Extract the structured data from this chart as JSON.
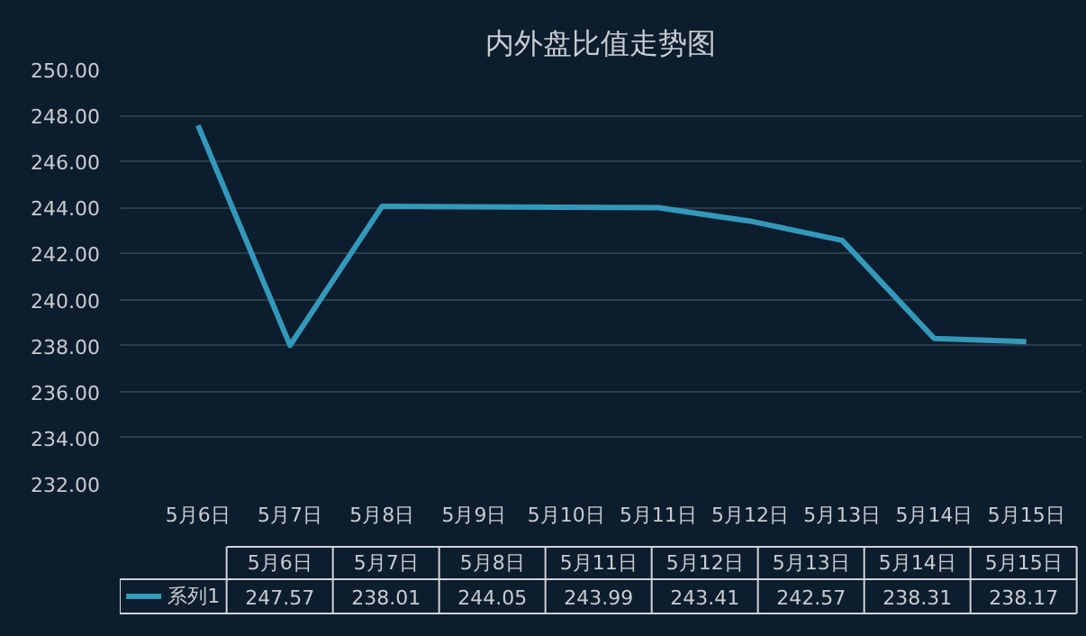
{
  "chart_data": [
    {
      "type": "line",
      "title": "内外盘比值走势图",
      "categories": [
        "5月6日",
        "5月7日",
        "5月8日",
        "5月9日",
        "5月10日",
        "5月11日",
        "5月12日",
        "5月13日",
        "5月14日",
        "5月15日"
      ],
      "series": [
        {
          "color": "#3399bb",
          "values": [
            247.57,
            238.01,
            244.05,
            null,
            null,
            243.99,
            243.41,
            242.57,
            238.31,
            238.17
          ]
        }
      ],
      "ylim": [
        232,
        250
      ],
      "yticks": [
        {
          "value": 232,
          "label": "232.00"
        },
        {
          "value": 234,
          "label": "234.00"
        },
        {
          "value": 236,
          "label": "236.00"
        },
        {
          "value": 238,
          "label": "238.00"
        },
        {
          "value": 240,
          "label": "240.00"
        },
        {
          "value": 242,
          "label": "242.00"
        },
        {
          "value": 244,
          "label": "244.00"
        },
        {
          "value": 246,
          "label": "246.00"
        },
        {
          "value": 248,
          "label": "248.00"
        },
        {
          "value": 250,
          "label": "250.00"
        }
      ],
      "grid": "y",
      "marker": "none",
      "line_style": "solid"
    },
    {
      "type": "other",
      "categories": [
        "5月6日",
        "5月7日",
        "5月8日",
        "5月11日",
        "5月12日",
        "5月13日",
        "5月14日",
        "5月15日"
      ],
      "series": [
        {
          "name": "系列1",
          "color": "#3399bb",
          "values": [
            247.57,
            238.01,
            244.05,
            243.99,
            243.41,
            242.57,
            238.31,
            238.17
          ]
        }
      ],
      "data_labels": true,
      "legend": "left"
    }
  ]
}
